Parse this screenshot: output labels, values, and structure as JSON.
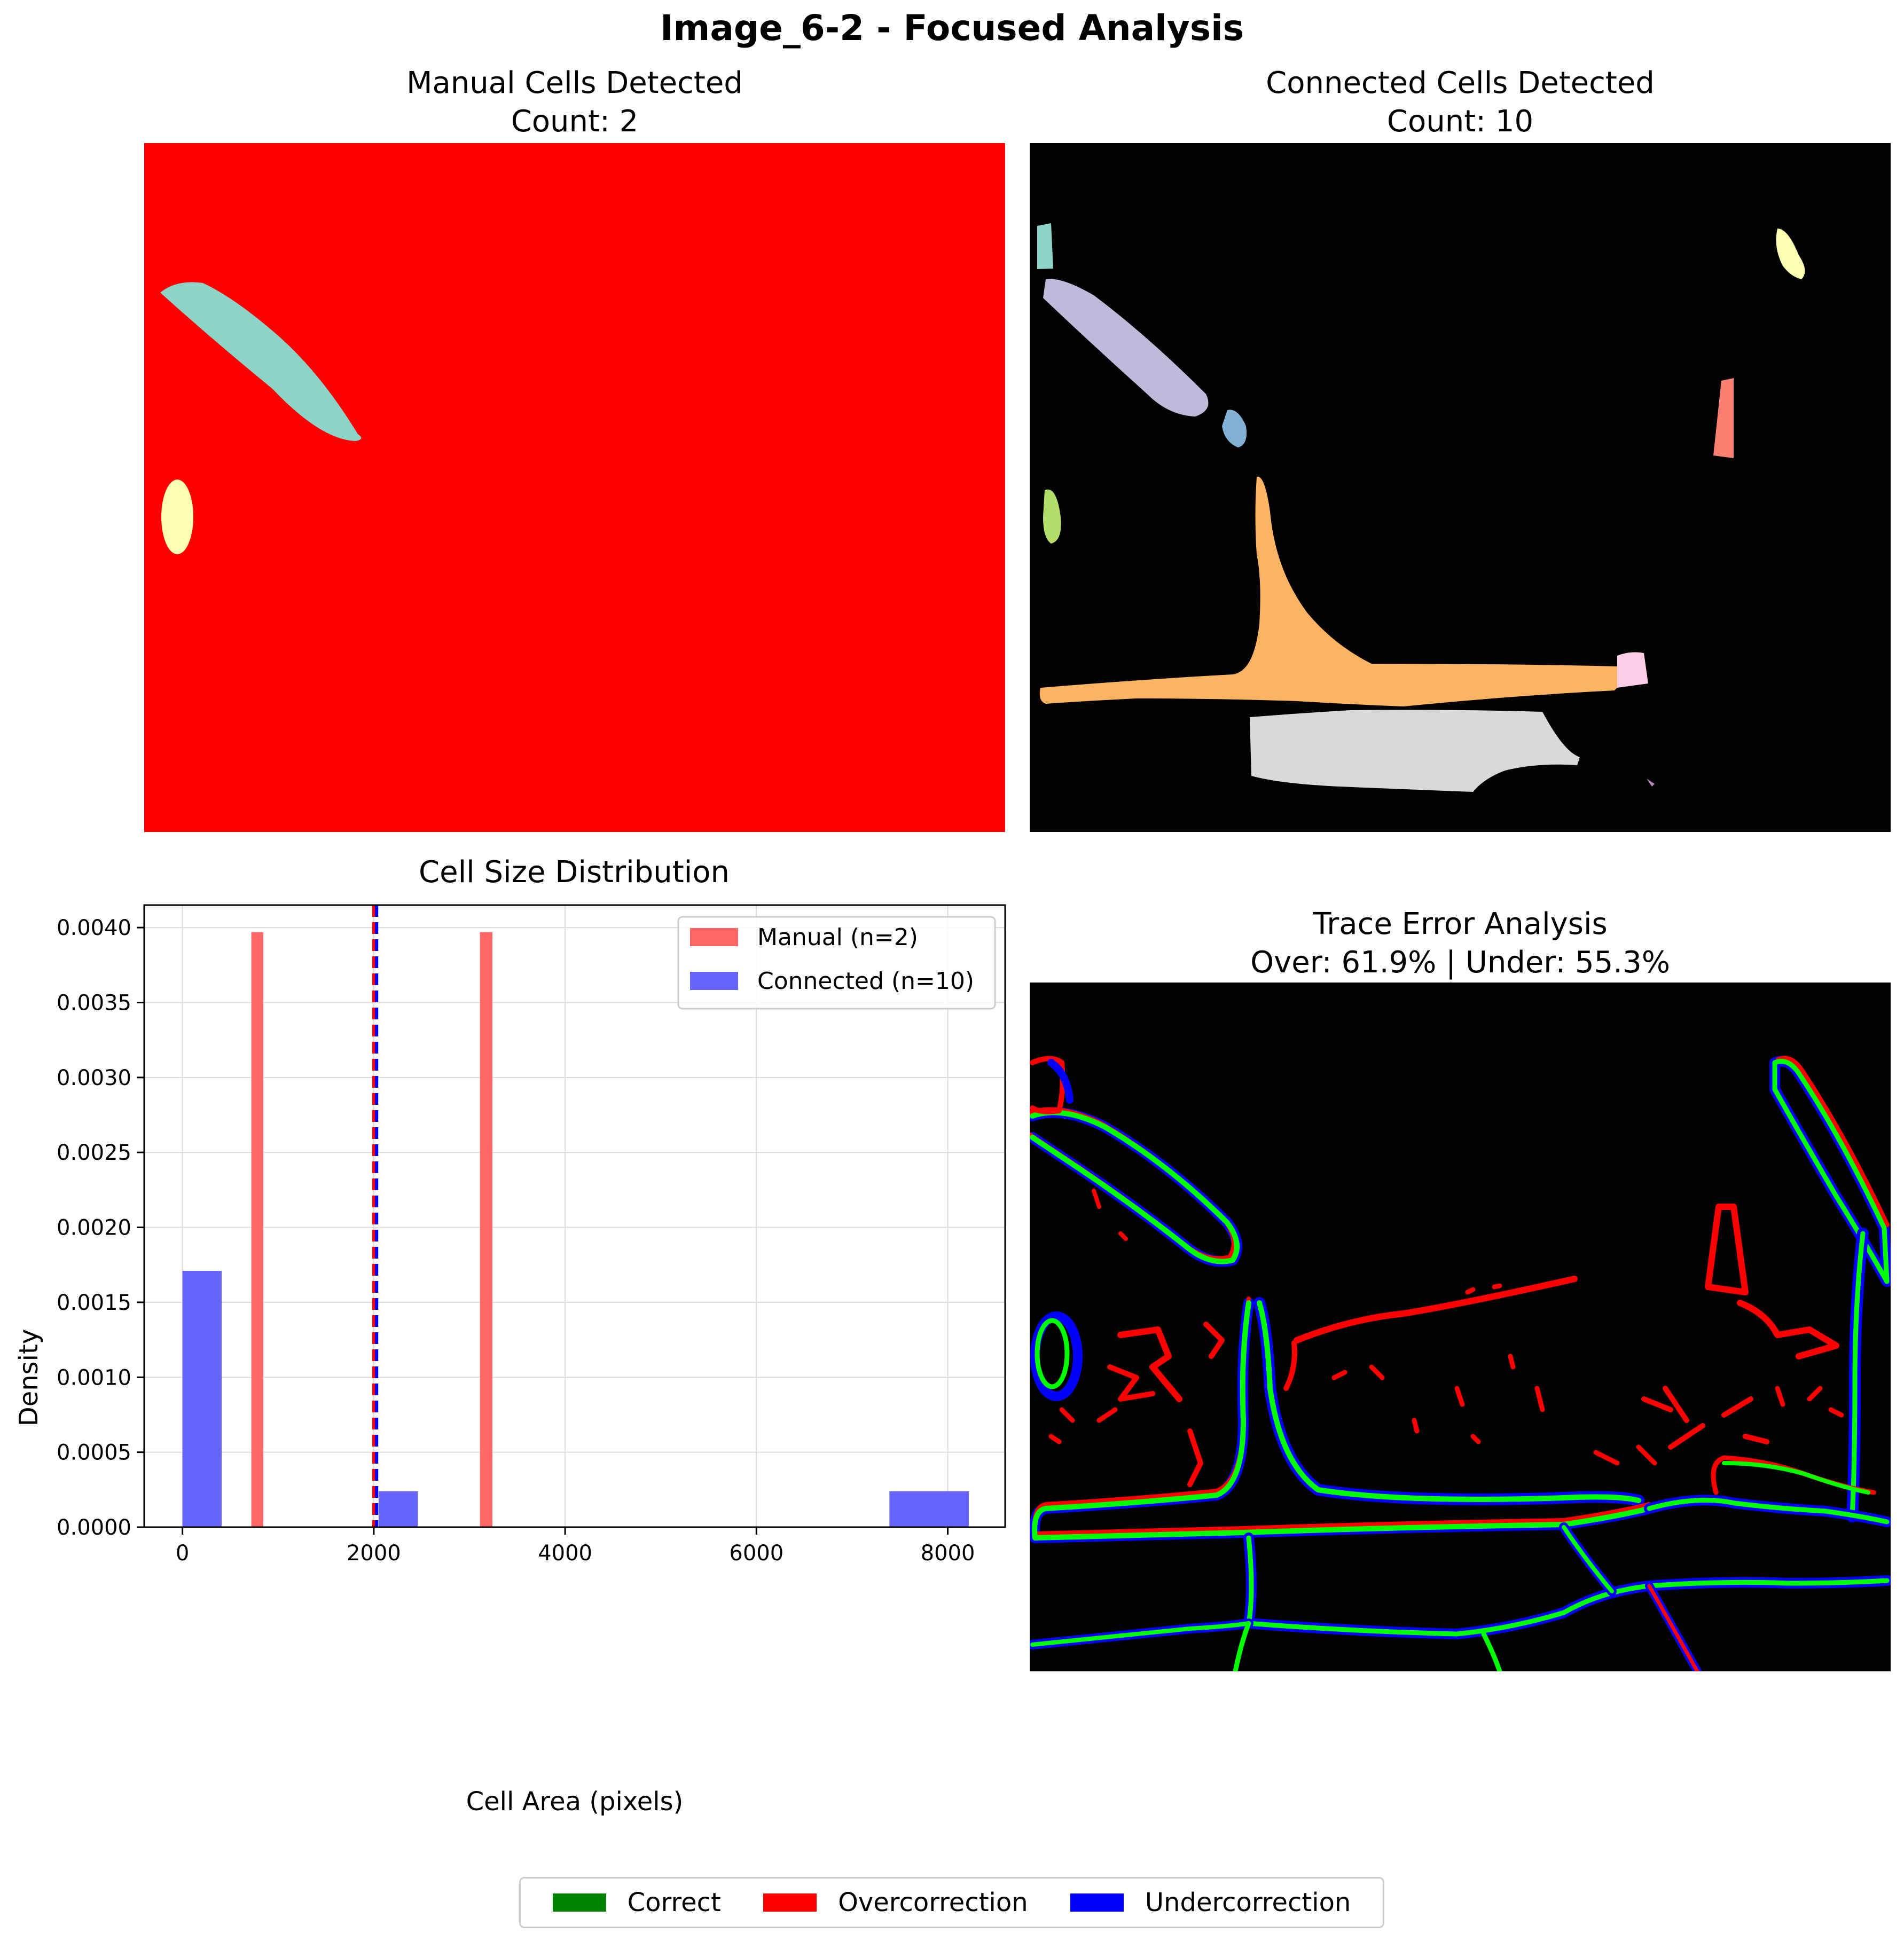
{
  "figure_title": "Image_6-2 - Focused Analysis",
  "panels": {
    "manual": {
      "title_line1": "Manual Cells Detected",
      "title_line2": "Count: 2",
      "background_color": "#ff0000"
    },
    "connected": {
      "title_line1": "Connected Cells Detected",
      "title_line2": "Count: 10",
      "background_color": "#000000"
    },
    "trace": {
      "title_line1": "Trace Error Analysis",
      "title_line2": "Over: 61.9% | Under: 55.3%",
      "background_color": "#000000"
    }
  },
  "colors": {
    "manual_bar": "#ff6666",
    "connected_bar": "#6666ff",
    "correct": "#008000",
    "overcorrection": "#ff0000",
    "undercorrection": "#0000ff",
    "trace_green": "#00ff00"
  },
  "bottom_legend": [
    {
      "label": "Correct",
      "color": "#008000"
    },
    {
      "label": "Overcorrection",
      "color": "#ff0000"
    },
    {
      "label": "Undercorrection",
      "color": "#0000ff"
    }
  ],
  "chart_data": {
    "type": "bar",
    "title": "Cell Size Distribution",
    "xlabel": "Cell Area (pixels)",
    "ylabel": "Density",
    "xlim": [
      -400,
      8600
    ],
    "ylim": [
      0,
      0.00415
    ],
    "xticks": [
      0,
      2000,
      4000,
      6000,
      8000
    ],
    "xtick_labels": [
      "0",
      "2000",
      "4000",
      "6000",
      "8000"
    ],
    "yticks": [
      0,
      0.0005,
      0.001,
      0.0015,
      0.002,
      0.0025,
      0.003,
      0.0035,
      0.004
    ],
    "ytick_labels": [
      "0.0000",
      "0.0005",
      "0.0010",
      "0.0015",
      "0.0020",
      "0.0025",
      "0.0030",
      "0.0035",
      "0.0040"
    ],
    "grid": true,
    "legend_position": "upper right",
    "series": [
      {
        "name": "Manual (n=2)",
        "color": "#ff6666",
        "bars": [
          {
            "x0": 720,
            "x1": 845,
            "value": 0.00397
          },
          {
            "x0": 3110,
            "x1": 3240,
            "value": 0.00397
          }
        ],
        "mean_line": 2000
      },
      {
        "name": "Connected (n=10)",
        "color": "#6666ff",
        "bars": [
          {
            "x0": 0,
            "x1": 410,
            "value": 0.00171
          },
          {
            "x0": 2050,
            "x1": 2460,
            "value": 0.00024
          },
          {
            "x0": 7390,
            "x1": 8220,
            "value": 0.00024
          }
        ],
        "mean_line": 2030
      }
    ]
  }
}
